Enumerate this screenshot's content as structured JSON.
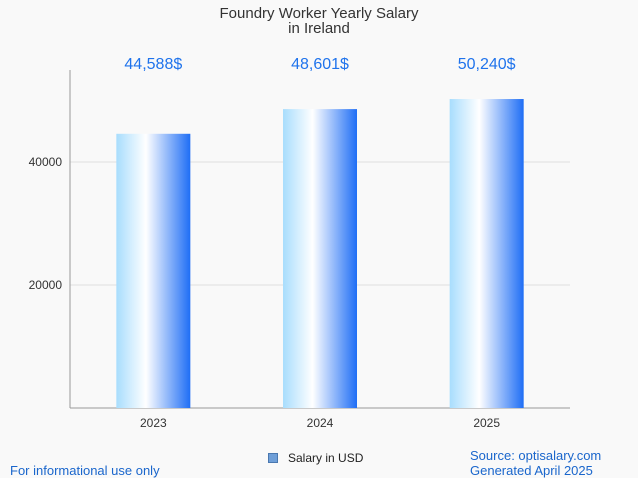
{
  "chart_data": {
    "type": "bar",
    "title": [
      "Foundry Worker Yearly Salary",
      "in Ireland"
    ],
    "categories": [
      "2023",
      "2024",
      "2025"
    ],
    "series": [
      {
        "name": "Salary in USD",
        "values": [
          44588,
          48601,
          50240
        ]
      }
    ],
    "data_labels": [
      "44,588$",
      "48,601$",
      "50,240$"
    ],
    "y_ticks": [
      20000,
      40000
    ],
    "ylim": [
      0,
      55000
    ],
    "xlabel": "",
    "ylabel": "",
    "grid": true,
    "legend_position": "bottom-center",
    "colors": {
      "bar_edge": "#1f6ef5",
      "bar_light": "#a8ddfd",
      "bar_mid": "#ffffff",
      "label": "#1f73ec"
    }
  },
  "footer": {
    "left": "For informational use only",
    "source": "Source: optisalary.com",
    "generated": "Generated April 2025"
  }
}
